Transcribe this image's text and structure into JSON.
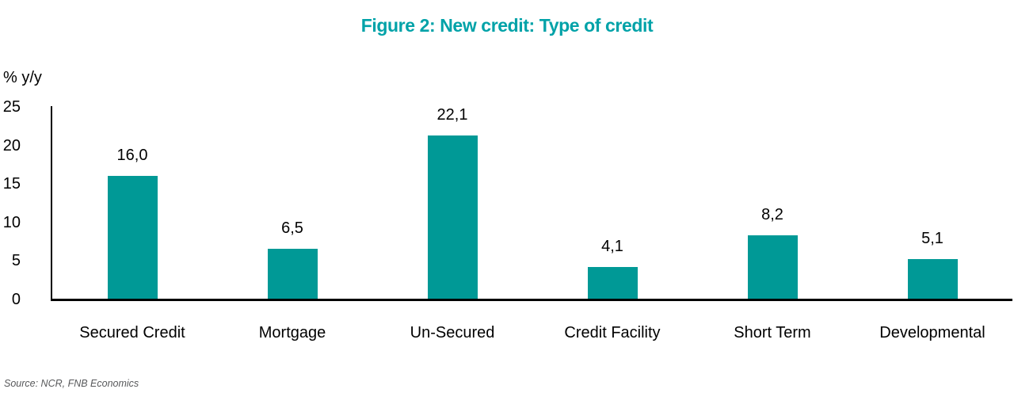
{
  "title": "Figure 2: New credit: Type of credit",
  "y_axis_title": "% y/y",
  "source": "Source: NCR, FNB Economics",
  "colors": {
    "bar": "#009996",
    "title": "#00A2A8",
    "axis": "#000000",
    "source_text": "#58595b"
  },
  "chart_data": {
    "type": "bar",
    "title": "Figure 2: New credit: Type of credit",
    "xlabel": "",
    "ylabel": "% y/y",
    "categories": [
      "Secured Credit",
      "Mortgage",
      "Un-Secured",
      "Credit Facility",
      "Short Term",
      "Developmental"
    ],
    "values": [
      16.0,
      6.5,
      22.1,
      4.1,
      8.2,
      5.1
    ],
    "value_labels": [
      "16,0",
      "6,5",
      "22,1",
      "4,1",
      "8,2",
      "5,1"
    ],
    "ylim": [
      0,
      25
    ],
    "yticks": [
      "0",
      "5",
      "10",
      "15",
      "20",
      "25"
    ],
    "grid": false,
    "legend": false,
    "bar_color": "#009996",
    "title_color": "#00A2A8",
    "source": "Source: NCR, FNB Economics"
  }
}
